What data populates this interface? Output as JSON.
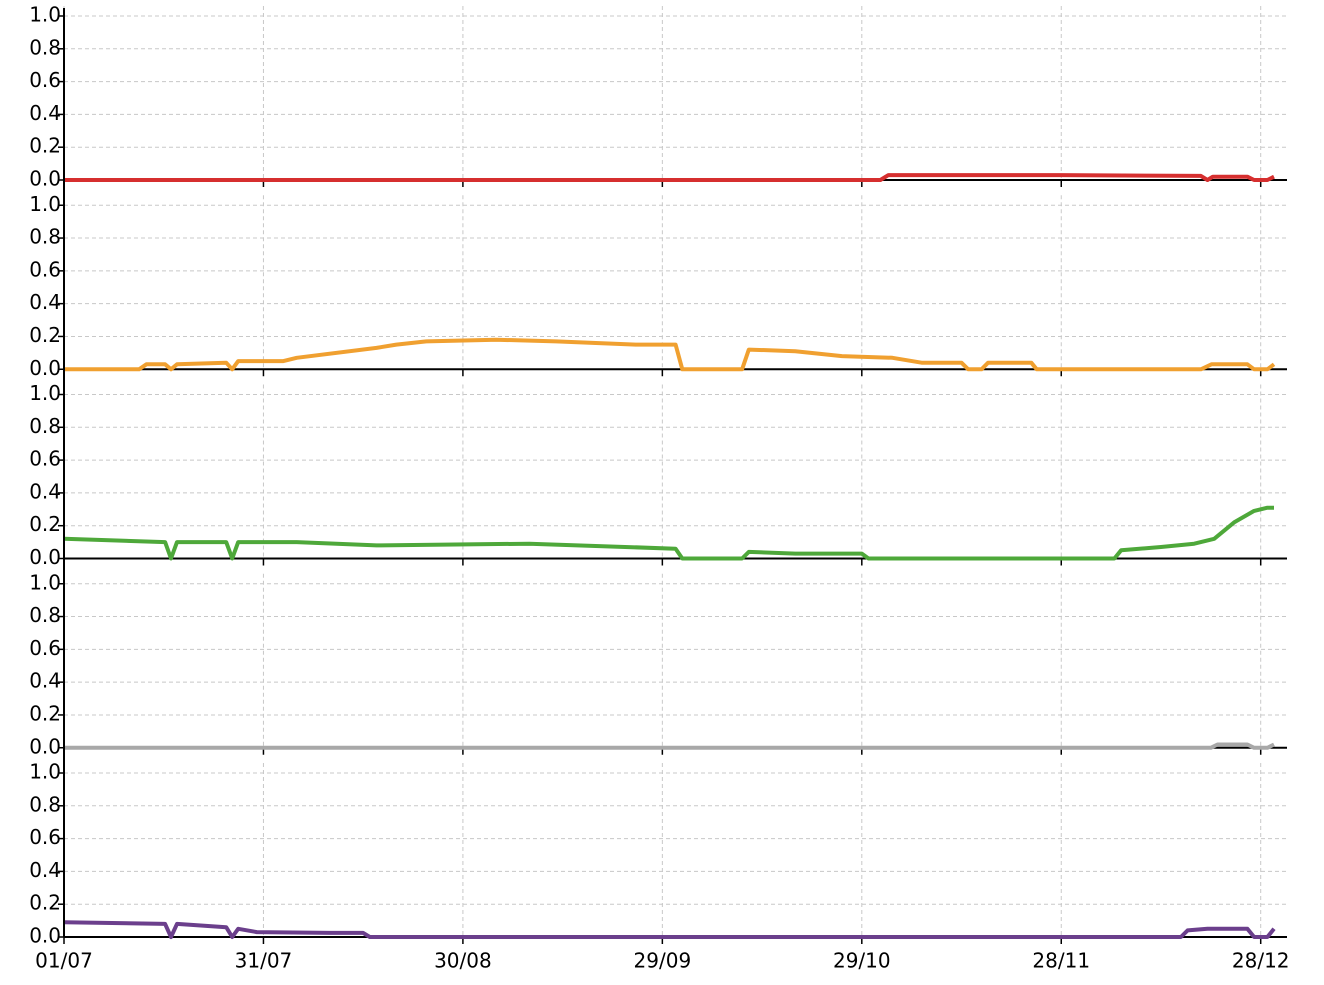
{
  "chart_data": {
    "type": "line",
    "subplots": true,
    "grid": true,
    "xlim": [
      0,
      182
    ],
    "xticks": [
      {
        "value": 0,
        "label": "01/07"
      },
      {
        "value": 30,
        "label": "31/07"
      },
      {
        "value": 60,
        "label": "30/08"
      },
      {
        "value": 90,
        "label": "29/09"
      },
      {
        "value": 120,
        "label": "29/10"
      },
      {
        "value": 150,
        "label": "28/11"
      },
      {
        "value": 180,
        "label": "28/12"
      }
    ],
    "ylim": [
      0,
      1
    ],
    "yticks": [
      {
        "value": 0,
        "label": "0.0"
      },
      0.2,
      0.4,
      0.6,
      0.8,
      {
        "value": 1,
        "label": "1.0"
      }
    ],
    "series": [
      {
        "color": "#d62f2f",
        "x": [
          0,
          122.8,
          124,
          150,
          171,
          172,
          172.8,
          178,
          179,
          181,
          182
        ],
        "values": [
          0,
          0,
          0.03,
          0.03,
          0.025,
          0,
          0.02,
          0.02,
          0,
          0,
          0.02
        ]
      },
      {
        "color": "#f0a030",
        "x": [
          0,
          11.3,
          12.4,
          15.2,
          16.1,
          17,
          24.4,
          25.3,
          26.2,
          33,
          35,
          47,
          50,
          54.5,
          65,
          74,
          86,
          92,
          93,
          102,
          103,
          110,
          117,
          124.6,
          129,
          135,
          136,
          138,
          139,
          145.5,
          146.3,
          171,
          172.6,
          178,
          179,
          181,
          182
        ],
        "values": [
          0,
          0,
          0.03,
          0.03,
          0,
          0.03,
          0.04,
          0,
          0.05,
          0.05,
          0.07,
          0.13,
          0.15,
          0.17,
          0.18,
          0.17,
          0.15,
          0.15,
          0,
          0,
          0.12,
          0.11,
          0.08,
          0.07,
          0.04,
          0.04,
          0,
          0,
          0.04,
          0.04,
          0,
          0,
          0.03,
          0.03,
          0,
          0,
          0.03
        ]
      },
      {
        "color": "#4ea83a",
        "x": [
          0,
          15.2,
          16.1,
          17,
          24.4,
          25.3,
          26.2,
          35,
          47,
          70,
          92,
          93,
          102,
          103,
          110,
          120,
          121,
          158,
          159,
          165,
          170,
          173,
          176,
          179,
          181,
          182
        ],
        "values": [
          0.12,
          0.1,
          0,
          0.1,
          0.1,
          0,
          0.1,
          0.1,
          0.08,
          0.09,
          0.06,
          0,
          0,
          0.04,
          0.03,
          0.03,
          0,
          0,
          0.05,
          0.07,
          0.09,
          0.12,
          0.22,
          0.29,
          0.31,
          0.31
        ]
      },
      {
        "color": "#a8a8a8",
        "x": [
          0,
          172.5,
          173.5,
          178,
          179,
          181,
          182
        ],
        "values": [
          0,
          0,
          0.02,
          0.02,
          0,
          0,
          0.02
        ]
      },
      {
        "color": "#6b3f8c",
        "x": [
          0,
          15.2,
          16.1,
          17,
          24.4,
          25.3,
          26.2,
          29,
          40,
          45,
          46,
          168,
          169,
          172,
          178,
          179,
          181,
          182
        ],
        "values": [
          0.09,
          0.08,
          0,
          0.08,
          0.06,
          0,
          0.05,
          0.03,
          0.025,
          0.025,
          0,
          0,
          0.04,
          0.05,
          0.05,
          0,
          0,
          0.05
        ]
      }
    ]
  }
}
